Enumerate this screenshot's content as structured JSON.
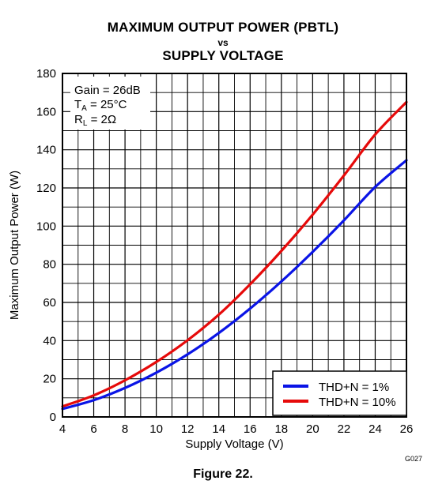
{
  "header": {
    "title_line1": "MAXIMUM OUTPUT POWER (PBTL)",
    "title_line2": "vs",
    "title_line3": "SUPPLY VOLTAGE"
  },
  "figure_label": "Figure 22.",
  "figure_code": "G027",
  "colors": {
    "thd_1": "#0a14e6",
    "thd_10": "#e60a0a",
    "grid": "#000000"
  },
  "chart_data": {
    "type": "line",
    "title": "MAXIMUM OUTPUT POWER (PBTL) vs SUPPLY VOLTAGE",
    "xlabel": "Supply Voltage (V)",
    "ylabel": "Maximum Output Power (W)",
    "xlim": [
      4,
      26
    ],
    "ylim": [
      0,
      180
    ],
    "x_ticks": [
      4,
      6,
      8,
      10,
      12,
      14,
      16,
      18,
      20,
      22,
      24,
      26
    ],
    "y_ticks": [
      0,
      20,
      40,
      60,
      80,
      100,
      120,
      140,
      160,
      180
    ],
    "grid": true,
    "conditions": {
      "gain": "Gain = 26dB",
      "ta_main": "T",
      "ta_sub": "A",
      "ta_rest": " = 25°C",
      "rl_main": "R",
      "rl_sub": "L",
      "rl_rest": " = 2Ω"
    },
    "legend_position": "bottom-right",
    "x": [
      4,
      6,
      8,
      10,
      12,
      14,
      16,
      18,
      20,
      22,
      24,
      26
    ],
    "series": [
      {
        "name": "THD+N = 1%",
        "color": "#0a14e6",
        "values": [
          4.2,
          8.8,
          15.2,
          23.2,
          32.8,
          44.0,
          56.8,
          71.0,
          86.5,
          103.0,
          120.5,
          134.5
        ]
      },
      {
        "name": "THD+N = 10%",
        "color": "#e60a0a",
        "values": [
          5.5,
          11.3,
          19.2,
          28.8,
          40.2,
          53.6,
          69.5,
          87.0,
          106.0,
          126.5,
          148.0,
          165.0
        ]
      }
    ]
  }
}
